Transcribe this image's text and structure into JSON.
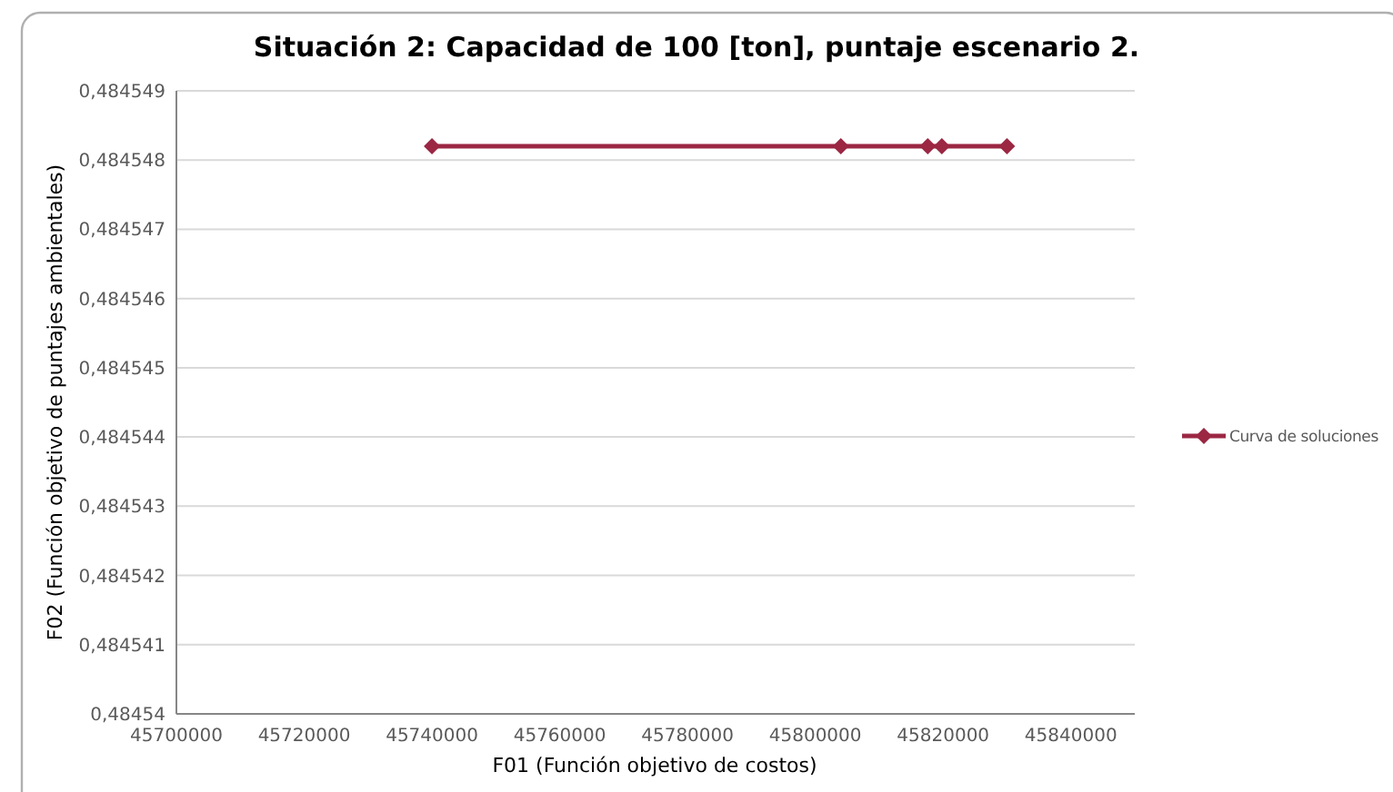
{
  "chart_data": {
    "type": "line",
    "title": "Situación 2: Capacidad de 100 [ton], puntaje escenario 2.",
    "xlabel": "F01 (Función objetivo de costos)",
    "ylabel": "F02 (Función objetivo de puntajes ambientales)",
    "series": [
      {
        "name": "Curva de soluciones",
        "color": "#9b2743",
        "x": [
          45740000,
          45804000,
          45817600,
          45819800,
          45830000
        ],
        "values": [
          0.4845482,
          0.4845482,
          0.4845482,
          0.4845482,
          0.4845482
        ]
      }
    ],
    "xlim": [
      45700000,
      45850000
    ],
    "xticks": [
      45700000,
      45720000,
      45740000,
      45760000,
      45780000,
      45800000,
      45820000,
      45840000
    ],
    "ylim": [
      0.48454,
      0.484549
    ],
    "yticks": [
      {
        "value": 0.48454,
        "label": "0,48454"
      },
      {
        "value": 0.484541,
        "label": "0,484541"
      },
      {
        "value": 0.484542,
        "label": "0,484542"
      },
      {
        "value": 0.484543,
        "label": "0,484543"
      },
      {
        "value": 0.484544,
        "label": "0,484544"
      },
      {
        "value": 0.484545,
        "label": "0,484545"
      },
      {
        "value": 0.484546,
        "label": "0,484546"
      },
      {
        "value": 0.484547,
        "label": "0,484547"
      },
      {
        "value": 0.484548,
        "label": "0,484548"
      },
      {
        "value": 0.484549,
        "label": "0,484549"
      }
    ],
    "grid": "y",
    "legend": "right",
    "marker": "diamond",
    "line_style": "solid"
  }
}
